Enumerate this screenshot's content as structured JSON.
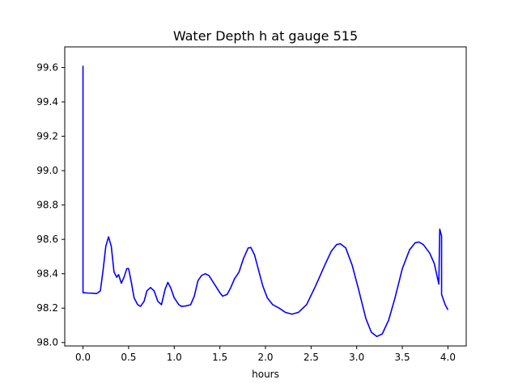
{
  "chart_data": {
    "type": "line",
    "title": "Water Depth h at gauge 515",
    "xlabel": "hours",
    "ylabel": "",
    "xlim": [
      -0.2,
      4.2
    ],
    "ylim": [
      97.98,
      99.72
    ],
    "x_ticks": [
      0.0,
      0.5,
      1.0,
      1.5,
      2.0,
      2.5,
      3.0,
      3.5,
      4.0
    ],
    "x_tick_labels": [
      "0.0",
      "0.5",
      "1.0",
      "1.5",
      "2.0",
      "2.5",
      "3.0",
      "3.5",
      "4.0"
    ],
    "y_ticks": [
      98.0,
      98.2,
      98.4,
      98.6,
      98.8,
      99.0,
      99.2,
      99.4,
      99.6
    ],
    "y_tick_labels": [
      "98.0",
      "98.2",
      "98.4",
      "98.6",
      "98.8",
      "99.0",
      "99.2",
      "99.4",
      "99.6"
    ],
    "grid": false,
    "legend": "none",
    "series": [
      {
        "color": "#0000ff",
        "points": [
          [
            0.0,
            99.61
          ],
          [
            0.0,
            98.29
          ],
          [
            0.05,
            98.288
          ],
          [
            0.1,
            98.287
          ],
          [
            0.15,
            98.285
          ],
          [
            0.19,
            98.3
          ],
          [
            0.22,
            98.42
          ],
          [
            0.25,
            98.56
          ],
          [
            0.28,
            98.615
          ],
          [
            0.31,
            98.56
          ],
          [
            0.34,
            98.41
          ],
          [
            0.37,
            98.38
          ],
          [
            0.39,
            98.395
          ],
          [
            0.42,
            98.345
          ],
          [
            0.45,
            98.38
          ],
          [
            0.48,
            98.43
          ],
          [
            0.5,
            98.43
          ],
          [
            0.53,
            98.35
          ],
          [
            0.56,
            98.26
          ],
          [
            0.6,
            98.22
          ],
          [
            0.63,
            98.21
          ],
          [
            0.67,
            98.24
          ],
          [
            0.7,
            98.3
          ],
          [
            0.74,
            98.32
          ],
          [
            0.78,
            98.3
          ],
          [
            0.82,
            98.24
          ],
          [
            0.86,
            98.22
          ],
          [
            0.9,
            98.31
          ],
          [
            0.93,
            98.35
          ],
          [
            0.96,
            98.32
          ],
          [
            1.0,
            98.26
          ],
          [
            1.05,
            98.22
          ],
          [
            1.08,
            98.21
          ],
          [
            1.13,
            98.213
          ],
          [
            1.18,
            98.22
          ],
          [
            1.22,
            98.27
          ],
          [
            1.26,
            98.36
          ],
          [
            1.3,
            98.39
          ],
          [
            1.34,
            98.4
          ],
          [
            1.38,
            98.39
          ],
          [
            1.44,
            98.34
          ],
          [
            1.5,
            98.29
          ],
          [
            1.53,
            98.27
          ],
          [
            1.58,
            98.28
          ],
          [
            1.62,
            98.32
          ],
          [
            1.66,
            98.37
          ],
          [
            1.71,
            98.41
          ],
          [
            1.76,
            98.49
          ],
          [
            1.81,
            98.55
          ],
          [
            1.84,
            98.553
          ],
          [
            1.88,
            98.51
          ],
          [
            1.93,
            98.41
          ],
          [
            1.97,
            98.33
          ],
          [
            2.02,
            98.26
          ],
          [
            2.08,
            98.22
          ],
          [
            2.15,
            98.2
          ],
          [
            2.22,
            98.175
          ],
          [
            2.29,
            98.165
          ],
          [
            2.36,
            98.175
          ],
          [
            2.45,
            98.22
          ],
          [
            2.55,
            98.33
          ],
          [
            2.65,
            98.45
          ],
          [
            2.72,
            98.53
          ],
          [
            2.78,
            98.57
          ],
          [
            2.82,
            98.575
          ],
          [
            2.88,
            98.55
          ],
          [
            2.95,
            98.45
          ],
          [
            3.02,
            98.31
          ],
          [
            3.1,
            98.14
          ],
          [
            3.16,
            98.06
          ],
          [
            3.22,
            98.035
          ],
          [
            3.28,
            98.05
          ],
          [
            3.35,
            98.13
          ],
          [
            3.42,
            98.26
          ],
          [
            3.5,
            98.43
          ],
          [
            3.58,
            98.54
          ],
          [
            3.64,
            98.58
          ],
          [
            3.68,
            98.585
          ],
          [
            3.73,
            98.57
          ],
          [
            3.8,
            98.52
          ],
          [
            3.85,
            98.46
          ],
          [
            3.9,
            98.34
          ],
          [
            3.91,
            98.66
          ],
          [
            3.93,
            98.62
          ],
          [
            3.93,
            98.28
          ],
          [
            3.97,
            98.22
          ],
          [
            4.0,
            98.19
          ]
        ]
      }
    ]
  }
}
